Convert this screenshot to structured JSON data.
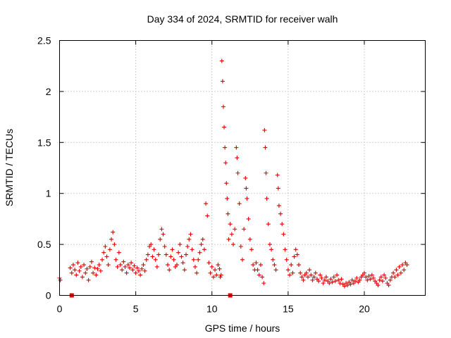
{
  "chart_data": {
    "type": "scatter",
    "title": "Day 334 of 2024, SRMTID for receiver walh",
    "xlabel": "GPS time / hours",
    "ylabel": "SRMTID / TECUs",
    "xlim": [
      0,
      24
    ],
    "ylim": [
      0,
      2.5
    ],
    "x_ticks": [
      0,
      5,
      10,
      15,
      20
    ],
    "x_tick_labels": [
      "0",
      "5",
      "10",
      "15",
      "20"
    ],
    "y_ticks": [
      0,
      0.5,
      1,
      1.5,
      2,
      2.5
    ],
    "y_tick_labels": [
      "0",
      "0.5",
      "1",
      "1.5",
      "2",
      "2.5"
    ],
    "grid": true,
    "marker": "plus",
    "color": "#e00000",
    "series": [
      {
        "name": "SRMTID",
        "points": [
          [
            0.0,
            0.17
          ],
          [
            0.05,
            0.15
          ],
          [
            0.7,
            0.27
          ],
          [
            0.8,
            0.22
          ],
          [
            0.9,
            0.3
          ],
          [
            1.0,
            0.25
          ],
          [
            1.1,
            0.2
          ],
          [
            1.2,
            0.32
          ],
          [
            1.3,
            0.24
          ],
          [
            1.4,
            0.28
          ],
          [
            1.5,
            0.18
          ],
          [
            1.6,
            0.3
          ],
          [
            1.7,
            0.22
          ],
          [
            1.8,
            0.26
          ],
          [
            1.9,
            0.15
          ],
          [
            2.0,
            0.28
          ],
          [
            2.1,
            0.33
          ],
          [
            2.2,
            0.22
          ],
          [
            2.3,
            0.27
          ],
          [
            2.4,
            0.2
          ],
          [
            2.5,
            0.26
          ],
          [
            2.6,
            0.3
          ],
          [
            2.7,
            0.24
          ],
          [
            2.8,
            0.35
          ],
          [
            2.9,
            0.42
          ],
          [
            3.0,
            0.48
          ],
          [
            3.1,
            0.38
          ],
          [
            3.2,
            0.3
          ],
          [
            3.3,
            0.45
          ],
          [
            3.4,
            0.55
          ],
          [
            3.5,
            0.62
          ],
          [
            3.6,
            0.5
          ],
          [
            3.7,
            0.35
          ],
          [
            3.8,
            0.28
          ],
          [
            3.9,
            0.42
          ],
          [
            4.0,
            0.3
          ],
          [
            4.1,
            0.25
          ],
          [
            4.2,
            0.33
          ],
          [
            4.3,
            0.28
          ],
          [
            4.4,
            0.22
          ],
          [
            4.5,
            0.3
          ],
          [
            4.6,
            0.27
          ],
          [
            4.7,
            0.32
          ],
          [
            4.8,
            0.25
          ],
          [
            4.9,
            0.29
          ],
          [
            5.0,
            0.22
          ],
          [
            5.1,
            0.27
          ],
          [
            5.2,
            0.24
          ],
          [
            5.3,
            0.2
          ],
          [
            5.4,
            0.26
          ],
          [
            5.5,
            0.3
          ],
          [
            5.6,
            0.24
          ],
          [
            5.7,
            0.35
          ],
          [
            5.8,
            0.4
          ],
          [
            5.9,
            0.48
          ],
          [
            6.0,
            0.5
          ],
          [
            6.1,
            0.38
          ],
          [
            6.2,
            0.45
          ],
          [
            6.3,
            0.35
          ],
          [
            6.4,
            0.28
          ],
          [
            6.5,
            0.4
          ],
          [
            6.6,
            0.55
          ],
          [
            6.7,
            0.65
          ],
          [
            6.8,
            0.6
          ],
          [
            6.9,
            0.48
          ],
          [
            7.0,
            0.4
          ],
          [
            7.1,
            0.3
          ],
          [
            7.2,
            0.25
          ],
          [
            7.3,
            0.38
          ],
          [
            7.4,
            0.45
          ],
          [
            7.5,
            0.35
          ],
          [
            7.6,
            0.28
          ],
          [
            7.7,
            0.3
          ],
          [
            7.8,
            0.42
          ],
          [
            7.9,
            0.5
          ],
          [
            8.0,
            0.38
          ],
          [
            8.1,
            0.32
          ],
          [
            8.2,
            0.25
          ],
          [
            8.3,
            0.4
          ],
          [
            8.4,
            0.48
          ],
          [
            8.5,
            0.55
          ],
          [
            8.6,
            0.6
          ],
          [
            8.7,
            0.45
          ],
          [
            8.8,
            0.35
          ],
          [
            8.9,
            0.28
          ],
          [
            9.0,
            0.22
          ],
          [
            9.1,
            0.35
          ],
          [
            9.2,
            0.42
          ],
          [
            9.3,
            0.5
          ],
          [
            9.4,
            0.55
          ],
          [
            9.5,
            0.45
          ],
          [
            9.6,
            0.9
          ],
          [
            9.7,
            0.78
          ],
          [
            9.8,
            0.32
          ],
          [
            9.9,
            0.22
          ],
          [
            10.0,
            0.28
          ],
          [
            10.1,
            0.18
          ],
          [
            10.2,
            0.25
          ],
          [
            10.3,
            0.2
          ],
          [
            10.4,
            0.3
          ],
          [
            10.5,
            0.26
          ],
          [
            10.55,
            0.18
          ],
          [
            10.6,
            0.2
          ],
          [
            10.65,
            2.3
          ],
          [
            10.7,
            2.1
          ],
          [
            10.75,
            1.85
          ],
          [
            10.8,
            1.65
          ],
          [
            10.85,
            1.45
          ],
          [
            10.9,
            1.3
          ],
          [
            10.95,
            1.1
          ],
          [
            11.0,
            0.95
          ],
          [
            11.05,
            0.8
          ],
          [
            11.1,
            0.55
          ],
          [
            11.2,
            0.7
          ],
          [
            11.3,
            0.6
          ],
          [
            11.4,
            0.5
          ],
          [
            11.5,
            0.65
          ],
          [
            11.6,
            1.45
          ],
          [
            11.65,
            1.35
          ],
          [
            11.7,
            1.2
          ],
          [
            11.8,
            0.9
          ],
          [
            11.9,
            0.48
          ],
          [
            12.0,
            0.35
          ],
          [
            12.1,
            0.65
          ],
          [
            12.2,
            1.15
          ],
          [
            12.25,
            1.05
          ],
          [
            12.3,
            0.95
          ],
          [
            12.4,
            0.75
          ],
          [
            12.5,
            0.55
          ],
          [
            12.6,
            0.45
          ],
          [
            12.7,
            0.3
          ],
          [
            12.8,
            0.25
          ],
          [
            12.9,
            0.32
          ],
          [
            13.0,
            0.25
          ],
          [
            13.1,
            0.2
          ],
          [
            13.2,
            0.3
          ],
          [
            13.3,
            0.18
          ],
          [
            13.4,
            0.12
          ],
          [
            13.45,
            1.62
          ],
          [
            13.5,
            1.45
          ],
          [
            13.55,
            1.2
          ],
          [
            13.6,
            0.95
          ],
          [
            13.7,
            0.7
          ],
          [
            13.8,
            0.5
          ],
          [
            13.9,
            0.45
          ],
          [
            14.0,
            0.35
          ],
          [
            14.1,
            0.3
          ],
          [
            14.2,
            0.25
          ],
          [
            14.3,
            1.18
          ],
          [
            14.35,
            1.05
          ],
          [
            14.4,
            0.88
          ],
          [
            14.5,
            0.8
          ],
          [
            14.6,
            0.7
          ],
          [
            14.7,
            0.6
          ],
          [
            14.8,
            0.45
          ],
          [
            14.9,
            0.35
          ],
          [
            15.0,
            0.25
          ],
          [
            15.1,
            0.2
          ],
          [
            15.2,
            0.3
          ],
          [
            15.3,
            0.22
          ],
          [
            15.4,
            0.38
          ],
          [
            15.5,
            0.45
          ],
          [
            15.6,
            0.4
          ],
          [
            15.7,
            0.3
          ],
          [
            15.8,
            0.22
          ],
          [
            15.9,
            0.18
          ],
          [
            16.0,
            0.15
          ],
          [
            16.1,
            0.2
          ],
          [
            16.2,
            0.22
          ],
          [
            16.3,
            0.18
          ],
          [
            16.4,
            0.25
          ],
          [
            16.5,
            0.2
          ],
          [
            16.6,
            0.15
          ],
          [
            16.7,
            0.18
          ],
          [
            16.8,
            0.22
          ],
          [
            16.9,
            0.16
          ],
          [
            17.0,
            0.14
          ],
          [
            17.1,
            0.2
          ],
          [
            17.2,
            0.17
          ],
          [
            17.3,
            0.12
          ],
          [
            17.4,
            0.15
          ],
          [
            17.5,
            0.18
          ],
          [
            17.6,
            0.14
          ],
          [
            17.7,
            0.12
          ],
          [
            17.8,
            0.16
          ],
          [
            17.9,
            0.13
          ],
          [
            18.0,
            0.18
          ],
          [
            18.1,
            0.14
          ],
          [
            18.2,
            0.2
          ],
          [
            18.3,
            0.15
          ],
          [
            18.4,
            0.12
          ],
          [
            18.5,
            0.16
          ],
          [
            18.6,
            0.11
          ],
          [
            18.7,
            0.09
          ],
          [
            18.8,
            0.12
          ],
          [
            18.9,
            0.1
          ],
          [
            19.0,
            0.13
          ],
          [
            19.1,
            0.11
          ],
          [
            19.2,
            0.15
          ],
          [
            19.3,
            0.12
          ],
          [
            19.4,
            0.14
          ],
          [
            19.5,
            0.17
          ],
          [
            19.6,
            0.13
          ],
          [
            19.7,
            0.15
          ],
          [
            19.8,
            0.18
          ],
          [
            19.9,
            0.2
          ],
          [
            20.0,
            0.22
          ],
          [
            20.1,
            0.18
          ],
          [
            20.2,
            0.15
          ],
          [
            20.3,
            0.19
          ],
          [
            20.4,
            0.16
          ],
          [
            20.5,
            0.2
          ],
          [
            20.6,
            0.17
          ],
          [
            20.7,
            0.14
          ],
          [
            20.8,
            0.12
          ],
          [
            20.9,
            0.1
          ],
          [
            21.0,
            0.15
          ],
          [
            21.1,
            0.18
          ],
          [
            21.2,
            0.14
          ],
          [
            21.3,
            0.2
          ],
          [
            21.4,
            0.17
          ],
          [
            21.5,
            0.12
          ],
          [
            21.6,
            0.1
          ],
          [
            21.7,
            0.15
          ],
          [
            21.8,
            0.18
          ],
          [
            21.9,
            0.22
          ],
          [
            22.0,
            0.18
          ],
          [
            22.1,
            0.25
          ],
          [
            22.2,
            0.2
          ],
          [
            22.3,
            0.28
          ],
          [
            22.4,
            0.22
          ],
          [
            22.5,
            0.3
          ],
          [
            22.6,
            0.25
          ],
          [
            22.7,
            0.32
          ],
          [
            22.8,
            0.3
          ]
        ]
      }
    ],
    "gap_markers_x": [
      0.8,
      11.2
    ]
  }
}
